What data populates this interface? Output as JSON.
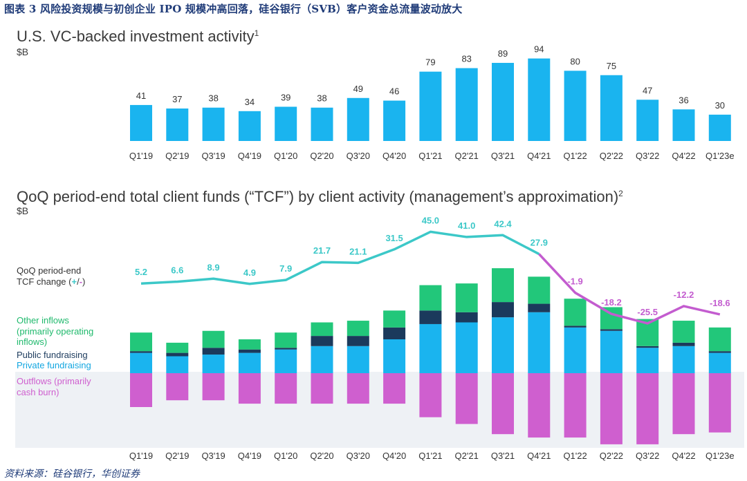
{
  "figure_title": "图表 3 风险投资规模与初创企业 IPO 规模冲高回落，硅谷银行（SVB）客户资金总流量波动放大",
  "source": "资料来源：硅谷银行，华创证券",
  "colors": {
    "bar_blue": "#1ab4ef",
    "private": "#1ab4ef",
    "public": "#1b3a5c",
    "other": "#22c77a",
    "outflows": "#cf5fcf",
    "line_pos": "#3cc8c8",
    "line_neg": "#c35ccf",
    "shade": "#eef1f5"
  },
  "chart_data": [
    {
      "type": "bar",
      "title": "U.S. VC-backed investment activity",
      "title_sup": "1",
      "unit": "$B",
      "categories": [
        "Q1'19",
        "Q2'19",
        "Q3'19",
        "Q4'19",
        "Q1'20",
        "Q2'20",
        "Q3'20",
        "Q4'20",
        "Q1'21",
        "Q2'21",
        "Q3'21",
        "Q4'21",
        "Q1'22",
        "Q2'22",
        "Q3'22",
        "Q4'22",
        "Q1'23e"
      ],
      "values": [
        41,
        37,
        38,
        34,
        39,
        38,
        49,
        46,
        79,
        83,
        89,
        94,
        80,
        75,
        47,
        36,
        30
      ]
    },
    {
      "type": "bar",
      "title": "QoQ period-end total client funds (“TCF”) by client activity (management’s approximation)",
      "title_sup": "2",
      "unit": "$B",
      "categories": [
        "Q1'19",
        "Q2'19",
        "Q3'19",
        "Q4'19",
        "Q1'20",
        "Q2'20",
        "Q3'20",
        "Q4'20",
        "Q1'21",
        "Q2'21",
        "Q3'21",
        "Q4'21",
        "Q1'22",
        "Q2'22",
        "Q3'22",
        "Q4'22",
        "Q1'23e"
      ],
      "series": [
        {
          "name": "Private fundraising",
          "values": [
            12,
            10,
            11,
            12,
            14,
            16,
            16,
            20,
            29,
            30,
            33,
            36,
            27,
            25,
            15,
            16,
            12
          ]
        },
        {
          "name": "Public fundraising",
          "values": [
            1,
            2,
            4,
            2,
            1,
            6,
            6,
            7,
            8,
            6,
            9,
            5,
            1,
            1,
            1,
            2,
            1
          ]
        },
        {
          "name": "Other inflows (primarily operating inflows)",
          "values": [
            11,
            6,
            10,
            6,
            9,
            8,
            9,
            10,
            15,
            17,
            20,
            16,
            16,
            13,
            16,
            13,
            14
          ]
        },
        {
          "name": "Outflows (primarily cash burn)",
          "values": [
            -20,
            -16,
            -16,
            -18,
            -18,
            -18,
            -18,
            -18,
            -26,
            -30,
            -36,
            -38,
            -38,
            -42,
            -42,
            -36,
            -35
          ]
        }
      ],
      "line": {
        "name": "QoQ period-end TCF change (+/-)",
        "name_line1": "QoQ period-end",
        "name_line2_a": "TCF change (",
        "name_plus": "+",
        "name_slash": "/",
        "name_minus": "-",
        "name_close": ")",
        "values": [
          5.2,
          6.6,
          8.9,
          4.9,
          7.9,
          21.7,
          21.1,
          31.5,
          45.0,
          41.0,
          42.4,
          27.9,
          -1.9,
          -18.2,
          -25.5,
          -12.2,
          -18.6
        ],
        "labels": [
          "5.2",
          "6.6",
          "8.9",
          "4.9",
          "7.9",
          "21.7",
          "21.1",
          "31.5",
          "45.0",
          "41.0",
          "42.4",
          "27.9",
          "-1.9",
          "-18.2",
          "-25.5",
          "-12.2",
          "-18.6"
        ]
      },
      "side_labels": {
        "other_line1": "Other inflows",
        "other_line2": "(primarily operating",
        "other_line3": "inflows)",
        "public": "Public fundraising",
        "private": "Private fundraising",
        "outflows_line1": "Outflows (primarily",
        "outflows_line2": "cash burn)"
      }
    }
  ]
}
